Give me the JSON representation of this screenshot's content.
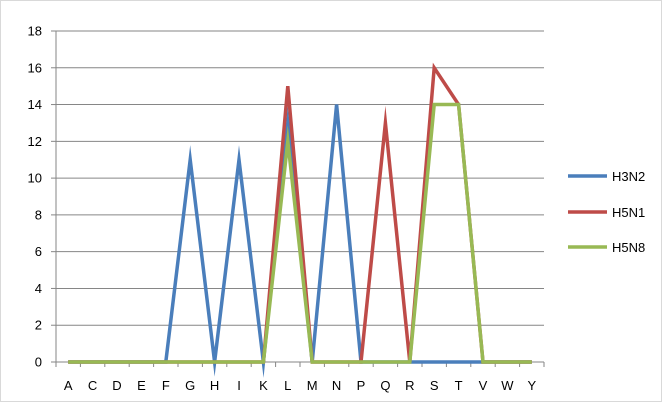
{
  "chart_data": {
    "type": "line",
    "categories": [
      "A",
      "C",
      "D",
      "E",
      "F",
      "G",
      "H",
      "I",
      "K",
      "L",
      "M",
      "N",
      "P",
      "Q",
      "R",
      "S",
      "T",
      "V",
      "W",
      "Y"
    ],
    "ylim": [
      0,
      18
    ],
    "yticks": [
      0,
      2,
      4,
      6,
      8,
      10,
      12,
      14,
      16,
      18
    ],
    "grid": true,
    "legend": "right",
    "series": [
      {
        "name": "H3N2",
        "color": "#4a7ebb",
        "values": [
          0,
          0,
          0,
          0,
          0,
          11,
          0,
          11,
          0,
          13,
          0,
          14,
          0,
          0,
          0,
          0,
          0,
          0,
          0,
          0
        ]
      },
      {
        "name": "H5N1",
        "color": "#be4b48",
        "values": [
          0,
          0,
          0,
          0,
          0,
          0,
          0,
          0,
          0,
          15,
          0,
          0,
          0,
          13,
          0,
          16,
          14,
          0,
          0,
          0
        ]
      },
      {
        "name": "H5N8",
        "color": "#98b954",
        "values": [
          0,
          0,
          0,
          0,
          0,
          0,
          0,
          0,
          0,
          12,
          0,
          0,
          0,
          0,
          0,
          14,
          14,
          0,
          0,
          0
        ]
      }
    ]
  }
}
